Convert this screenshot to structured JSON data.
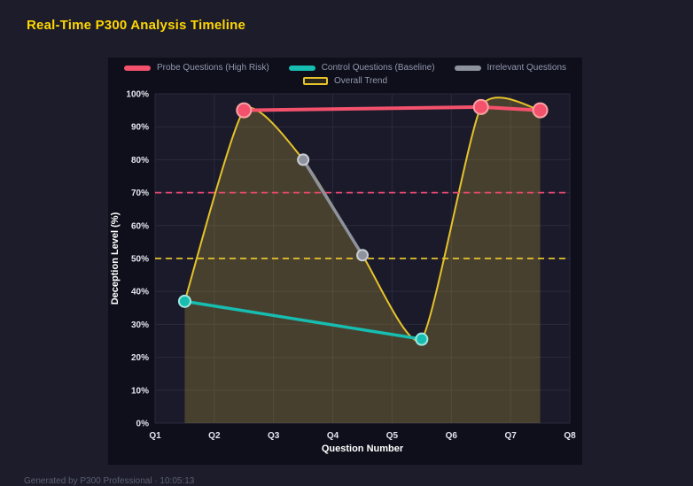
{
  "header": {
    "title": "Real-Time P300 Analysis Timeline"
  },
  "footer": {
    "text": "Generated by P300 Professional · 10:05:13"
  },
  "colors": {
    "background": "#1c1c2b",
    "panel": "#0f0f1b",
    "plot": "#1a1a2b",
    "grid": "#2a2a3c",
    "title": "#ffd700",
    "tick": "#e2e4ee",
    "legend_text": "#9198ad"
  },
  "chart_data": {
    "type": "line",
    "title": "Real-Time P300 Analysis Timeline",
    "xlabel": "Question Number",
    "ylabel": "Deception Level (%)",
    "x_ticks": [
      "Q1",
      "Q2",
      "Q3",
      "Q4",
      "Q5",
      "Q6",
      "Q7",
      "Q8"
    ],
    "x_range": [
      1,
      8
    ],
    "ylim": [
      0,
      100
    ],
    "y_tick_step": 10,
    "y_tick_suffix": "%",
    "grid": true,
    "legend_position": "top",
    "series": [
      {
        "id": "probe",
        "name": "Probe Questions (High Risk)",
        "color": "#f4516c",
        "marker_stroke": "#f9a3a3",
        "x": [
          2.5,
          6.5,
          7.5
        ],
        "y": [
          95,
          96,
          95
        ],
        "line_width": 4,
        "marker_r": 8,
        "legend_row": 1
      },
      {
        "id": "control",
        "name": "Control Questions (Baseline)",
        "color": "#16bdb0",
        "marker_stroke": "#9fe8df",
        "x": [
          1.5,
          5.5
        ],
        "y": [
          37,
          25.5
        ],
        "line_width": 3.5,
        "marker_r": 6.5,
        "legend_row": 1
      },
      {
        "id": "irrelevant",
        "name": "Irrelevant Questions",
        "color": "#8d929c",
        "marker_stroke": "#c9cdd4",
        "x": [
          3.5,
          4.5
        ],
        "y": [
          80,
          51
        ],
        "line_width": 3.5,
        "marker_r": 6,
        "legend_row": 1
      },
      {
        "id": "trend",
        "name": "Overall Trend",
        "color": "#e6c32b",
        "x": [
          1.5,
          2.5,
          3.5,
          4.5,
          5.5,
          6.5,
          7.5
        ],
        "y": [
          37,
          95,
          80,
          51,
          25.5,
          96,
          95
        ],
        "line_width": 2,
        "marker_r": 0,
        "smooth": true,
        "hollow_swatch": true,
        "area_fill": "rgba(222,190,60,0.24)",
        "legend_row": 2
      }
    ],
    "thresholds": [
      {
        "value": 70,
        "color": "#e84a6f",
        "style": "dashed"
      },
      {
        "value": 50,
        "color": "#e6c32b",
        "style": "dashed"
      }
    ]
  }
}
